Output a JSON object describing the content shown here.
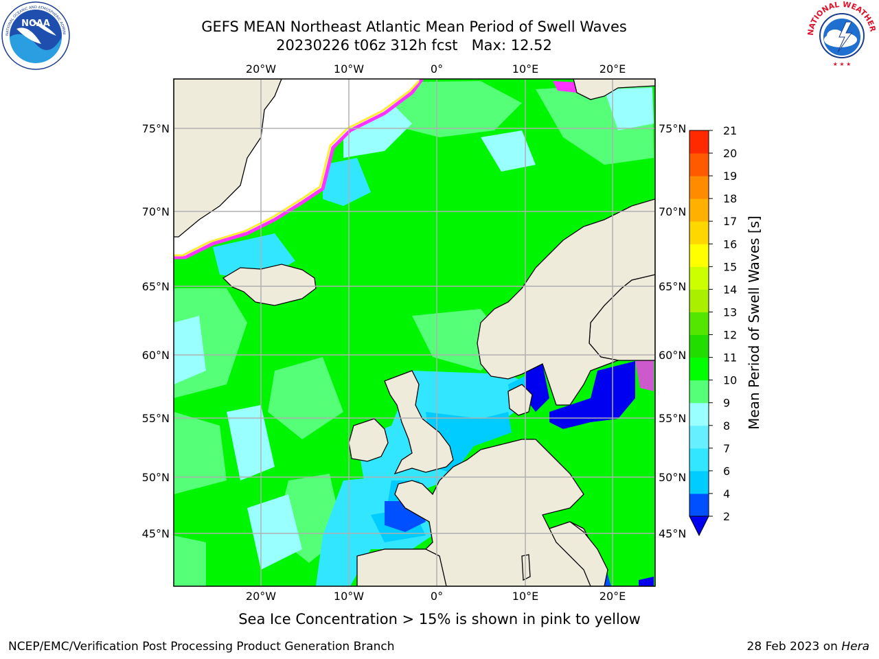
{
  "header": {
    "title_line1": "GEFS MEAN Northeast Atlantic Mean Period of Swell Waves",
    "title_line2": "20230226 t06z 312h fcst   Max: 12.52"
  },
  "logos": {
    "left": "noaa-logo",
    "right": "national-weather-service-logo",
    "left_text": "NATIONAL OCEANIC AND ATMOSPHERIC ADMINISTRATION · U.S. DEPARTMENT OF COMMERCE",
    "left_center": "NOAA",
    "right_text": "NATIONAL WEATHER SERVICE"
  },
  "map": {
    "lon_labels": [
      "20°W",
      "10°W",
      "0°",
      "10°E",
      "20°E"
    ],
    "lat_labels": [
      "75°N",
      "70°N",
      "65°N",
      "60°N",
      "55°N",
      "50°N",
      "45°N"
    ],
    "colors": {
      "land": "#efebdb",
      "grid": "#b0b0b0",
      "sea_ice": "#ffffff",
      "ice_edge": [
        "#ff33ff",
        "#ff99cc",
        "#ffee33"
      ]
    }
  },
  "colorbar": {
    "label": "Mean Period of Swell Waves [s]",
    "ticks": [
      "2",
      "4",
      "6",
      "7",
      "8",
      "9",
      "10",
      "11",
      "12",
      "13",
      "14",
      "15",
      "16",
      "17",
      "18",
      "19",
      "20",
      "21"
    ],
    "colors": [
      "#0050ff",
      "#00ccff",
      "#33e6ff",
      "#66f0ff",
      "#99ffff",
      "#55ff77",
      "#00ff00",
      "#22dd00",
      "#55e600",
      "#aaee00",
      "#ccff00",
      "#ffff00",
      "#ffd700",
      "#ffb000",
      "#ff8c00",
      "#ff5a00",
      "#ff2a00",
      "#ff0000"
    ],
    "extend_min_color": "#0000f0"
  },
  "footer": {
    "note": "Sea Ice Concentration > 15% is shown in pink to yellow",
    "credit": "NCEP/EMC/Verification Post Processing Product Generation Branch",
    "date": "28 Feb 2023 on ",
    "host": "Hera"
  }
}
